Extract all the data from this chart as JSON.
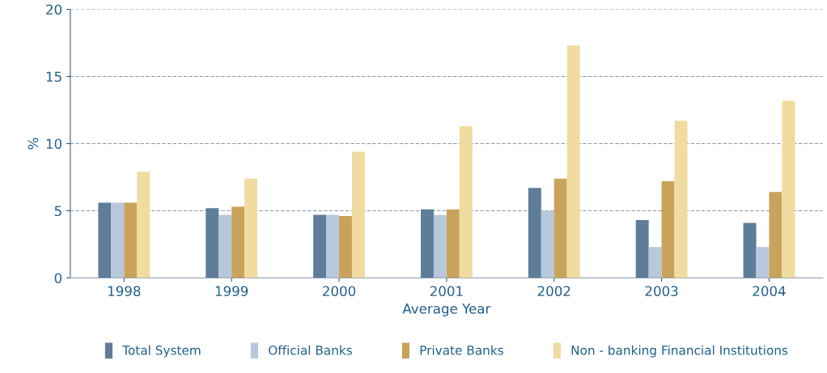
{
  "chart_data": {
    "type": "bar",
    "xlabel": "Average Year",
    "ylabel": "%",
    "categories": [
      "1998",
      "1999",
      "2000",
      "2001",
      "2002",
      "2003",
      "2004"
    ],
    "series": [
      {
        "name": "Total System",
        "color": "#5f7d99",
        "values": [
          5.6,
          5.2,
          4.7,
          5.1,
          6.7,
          4.3,
          4.1
        ]
      },
      {
        "name": "Official Banks",
        "color": "#b8c8dc",
        "values": [
          5.6,
          4.7,
          4.7,
          4.7,
          5.0,
          2.3,
          2.3
        ]
      },
      {
        "name": "Private Banks",
        "color": "#c9a35a",
        "values": [
          5.6,
          5.3,
          4.6,
          5.1,
          7.4,
          7.2,
          6.4
        ]
      },
      {
        "name": "Non - banking Financial Institutions",
        "color": "#f0dca0",
        "values": [
          7.9,
          7.4,
          9.4,
          11.3,
          17.3,
          11.7,
          13.2
        ]
      }
    ],
    "ylim": [
      0,
      20
    ],
    "yticks": [
      0,
      5,
      10,
      15,
      20
    ],
    "grid": "y",
    "legend": "bottom"
  }
}
